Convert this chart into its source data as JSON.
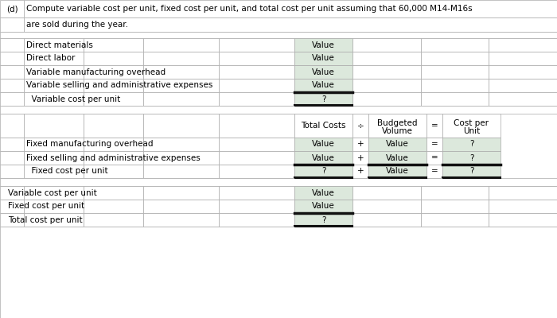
{
  "title_label": "(d)",
  "title_text": "Compute variable cost per unit, fixed cost per unit, and total cost per unit assuming that 60,000 M14-M16s",
  "title_text2": "are sold during the year.",
  "bg_color": "#ffffff",
  "cell_fill": "#dce8dc",
  "grid_color": "#aaaaaa",
  "dark_line": "#111111",
  "section1_rows": [
    "Direct materials",
    "Direct labor",
    "Variable manufacturing overhead",
    "Variable selling and administrative expenses"
  ],
  "section1_summary": "  Variable cost per unit",
  "section2_header_col1": "Total Costs",
  "section2_header_op": "÷",
  "section2_header_col2": "Budgeted\nVolume",
  "section2_header_eq": "=",
  "section2_header_col3": "Cost per\nUnit",
  "section2_rows": [
    "Fixed manufacturing overhead",
    "Fixed selling and administrative expenses"
  ],
  "section2_summary": "  Fixed cost per unit",
  "section3_rows": [
    "Variable cost per unit",
    "Fixed cost per unit"
  ],
  "section3_summary": "Total cost per unit",
  "value_text": "Value",
  "question_text": "?"
}
